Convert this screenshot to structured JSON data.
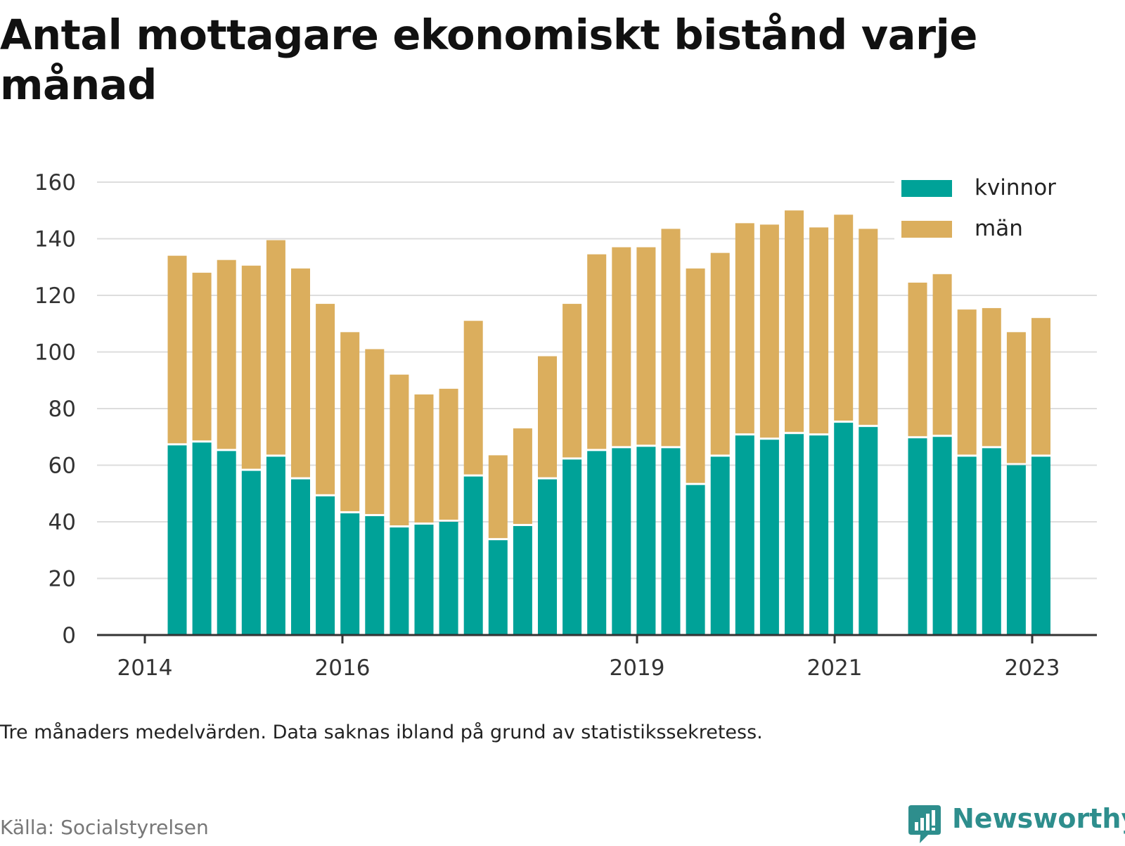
{
  "title": "Antal mottagare ekonomiskt bistånd varje månad",
  "note": "Tre månaders medelvärden. Data saknas ibland på grund av statistikssekretess.",
  "source": "Källa: Socialstyrelsen",
  "brand": "Newsworthy",
  "colors": {
    "kvinnor": "#00a298",
    "man": "#dbae5d",
    "grid": "#dddddd",
    "axis": "#333333"
  },
  "chart_data": {
    "type": "bar",
    "stacked": true,
    "ylim": [
      0,
      160
    ],
    "yticks": [
      0,
      20,
      40,
      60,
      80,
      100,
      120,
      140,
      160
    ],
    "grid": true,
    "legend_position": "top-right",
    "xtick_labels": [
      "2014",
      "2016",
      "2019",
      "2021",
      "2023"
    ],
    "categories": [
      "2014-04",
      "2014-07",
      "2014-10",
      "2015-01",
      "2015-04",
      "2015-07",
      "2015-10",
      "2016-01",
      "2016-04",
      "2016-07",
      "2016-10",
      "2017-01",
      "2017-04",
      "2017-07",
      "2017-10",
      "2018-01",
      "2018-04",
      "2018-07",
      "2018-10",
      "2019-01",
      "2019-04",
      "2019-07",
      "2019-10",
      "2020-01",
      "2020-04",
      "2020-07",
      "2020-10",
      "2021-01",
      "2021-04",
      "2021-07",
      "2021-10",
      "2022-01",
      "2022-04",
      "2022-07",
      "2022-10",
      "2023-01",
      "2023-04"
    ],
    "series": [
      {
        "name": "kvinnor",
        "color": "#00a298",
        "values": [
          67,
          68,
          65,
          58,
          63,
          55,
          49,
          43,
          42,
          38,
          39,
          40,
          56,
          33.5,
          38.5,
          55,
          62,
          65,
          66,
          66.5,
          66,
          53,
          63,
          70.5,
          69,
          71,
          70.5,
          75,
          73.5,
          null,
          69.5,
          70,
          63,
          66,
          60,
          63,
          null
        ]
      },
      {
        "name": "män",
        "color": "#dbae5d",
        "values": [
          67,
          60,
          67.5,
          72.5,
          76.5,
          74.5,
          68,
          64,
          59,
          54,
          46,
          47,
          55,
          30,
          34.5,
          43.5,
          55,
          69.5,
          71,
          70.5,
          77.5,
          76.5,
          72,
          75,
          76,
          79,
          73.5,
          73.5,
          70,
          null,
          55,
          57.5,
          52,
          49.5,
          47,
          49,
          null
        ]
      }
    ]
  }
}
